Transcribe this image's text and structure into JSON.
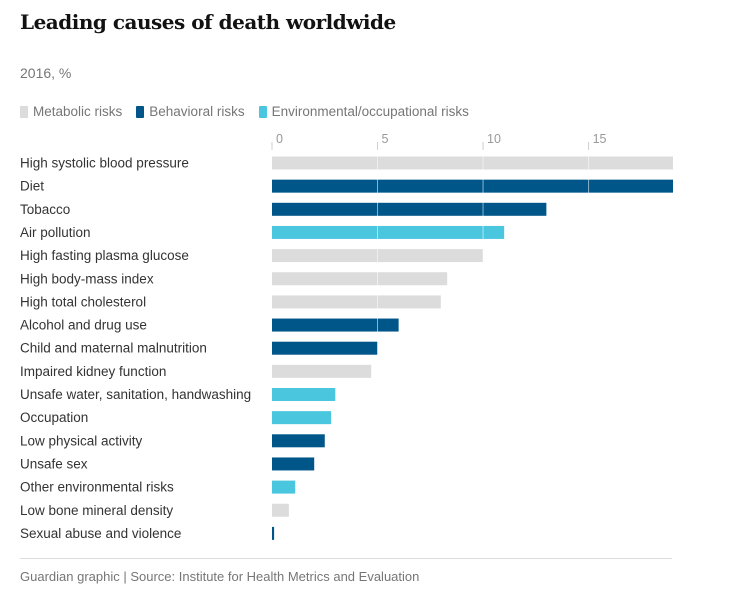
{
  "chart_data": {
    "type": "bar",
    "orientation": "horizontal",
    "title": "Leading causes of death worldwide",
    "subtitle": "2016, %",
    "xlim": [
      0,
      19
    ],
    "ticks": [
      0,
      5,
      10,
      15
    ],
    "legend_placement": "top-left",
    "grid": true,
    "legend": [
      {
        "name": "Metabolic risks",
        "color": "#dcdcdc"
      },
      {
        "name": "Behavioral risks",
        "color": "#005689"
      },
      {
        "name": "Environmental/occupational risks",
        "color": "#4bc6df"
      }
    ],
    "bars": [
      {
        "label": "High systolic blood pressure",
        "value": 19.0,
        "group": 0
      },
      {
        "label": "Diet",
        "value": 19.0,
        "group": 1
      },
      {
        "label": "Tobacco",
        "value": 13.0,
        "group": 1
      },
      {
        "label": "Air pollution",
        "value": 11.0,
        "group": 2
      },
      {
        "label": "High fasting plasma glucose",
        "value": 10.0,
        "group": 0
      },
      {
        "label": "High body-mass index",
        "value": 8.3,
        "group": 0
      },
      {
        "label": "High total cholesterol",
        "value": 8.0,
        "group": 0
      },
      {
        "label": "Alcohol and drug use",
        "value": 6.0,
        "group": 1
      },
      {
        "label": "Child and maternal malnutrition",
        "value": 5.0,
        "group": 1
      },
      {
        "label": "Impaired kidney function",
        "value": 4.7,
        "group": 0
      },
      {
        "label": "Unsafe water, sanitation, handwashing",
        "value": 3.0,
        "group": 2
      },
      {
        "label": "Occupation",
        "value": 2.8,
        "group": 2
      },
      {
        "label": "Low physical activity",
        "value": 2.5,
        "group": 1
      },
      {
        "label": "Unsafe sex",
        "value": 2.0,
        "group": 1
      },
      {
        "label": "Other environmental risks",
        "value": 1.1,
        "group": 2
      },
      {
        "label": "Low bone mineral density",
        "value": 0.8,
        "group": 0
      },
      {
        "label": "Sexual abuse and violence",
        "value": 0.1,
        "group": 1
      }
    ]
  },
  "footer": {
    "source": "Guardian graphic | Source: Institute for Health Metrics and Evaluation"
  }
}
